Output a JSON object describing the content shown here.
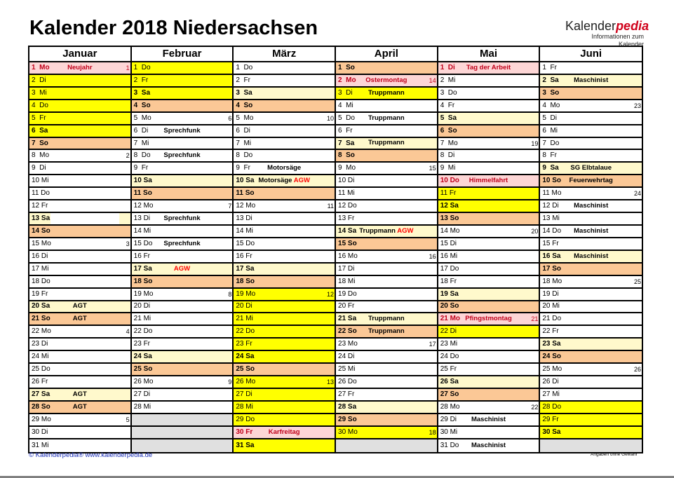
{
  "title": "Kalender 2018 Niedersachsen",
  "logo": {
    "main": "Kalender",
    "accent": "pedia",
    "sub": "Informationen zum Kalender"
  },
  "colors": {
    "saturday": "#fff9cc",
    "sunday": "#fbc896",
    "holiday": "#fdd6d6",
    "holiday_text": "#c0001a",
    "vacation": "#ffff00",
    "empty": "#e0e0e0",
    "link": "#1b2fb8"
  },
  "months": [
    {
      "name": "Januar",
      "days": [
        {
          "d": "1  Mo",
          "t": "hol",
          "ev": "Neujahr",
          "wk": "1"
        },
        {
          "d": "2  Di",
          "t": "yel"
        },
        {
          "d": "3  Mi",
          "t": "yel"
        },
        {
          "d": "4  Do",
          "t": "yel"
        },
        {
          "d": "5  Fr",
          "t": "yel"
        },
        {
          "d": "6  Sa",
          "t": "yel",
          "b": true
        },
        {
          "d": "7  So",
          "t": "sun",
          "b": true
        },
        {
          "d": "8  Mo",
          "wk": "2"
        },
        {
          "d": "9  Di"
        },
        {
          "d": "10 Mi"
        },
        {
          "d": "11 Do"
        },
        {
          "d": "12 Fr"
        },
        {
          "d": "13 Sa",
          "t": "part",
          "b": true
        },
        {
          "d": "14 So",
          "t": "sun",
          "b": true
        },
        {
          "d": "15 Mo",
          "wk": "3"
        },
        {
          "d": "16 Di"
        },
        {
          "d": "17 Mi"
        },
        {
          "d": "18 Do"
        },
        {
          "d": "19 Fr"
        },
        {
          "d": "20 Sa",
          "t": "sat",
          "b": true,
          "ev": "AGT"
        },
        {
          "d": "21 So",
          "t": "sun",
          "b": true,
          "ev": "AGT"
        },
        {
          "d": "22 Mo",
          "wk": "4"
        },
        {
          "d": "23 Di"
        },
        {
          "d": "24 Mi"
        },
        {
          "d": "25 Do"
        },
        {
          "d": "26 Fr"
        },
        {
          "d": "27 Sa",
          "t": "sat",
          "b": true,
          "ev": "AGT"
        },
        {
          "d": "28 So",
          "t": "sun",
          "b": true,
          "ev": "AGT"
        },
        {
          "d": "29 Mo",
          "wk": "5"
        },
        {
          "d": "30 Di"
        },
        {
          "d": "31 Mi"
        }
      ]
    },
    {
      "name": "Februar",
      "days": [
        {
          "d": "1  Do",
          "t": "yel"
        },
        {
          "d": "2  Fr",
          "t": "yel"
        },
        {
          "d": "3  Sa",
          "t": "yel",
          "b": true
        },
        {
          "d": "4  So",
          "t": "sun",
          "b": true
        },
        {
          "d": "5  Mo",
          "wk": "6"
        },
        {
          "d": "6  Di",
          "ev": "Sprechfunk"
        },
        {
          "d": "7  Mi"
        },
        {
          "d": "8  Do",
          "ev": "Sprechfunk"
        },
        {
          "d": "9  Fr"
        },
        {
          "d": "10 Sa",
          "t": "sat",
          "b": true
        },
        {
          "d": "11 So",
          "t": "sun",
          "b": true
        },
        {
          "d": "12 Mo",
          "wk": "7"
        },
        {
          "d": "13 Di",
          "ev": "Sprechfunk"
        },
        {
          "d": "14 Mi"
        },
        {
          "d": "15 Do",
          "ev": "Sprechfunk"
        },
        {
          "d": "16 Fr"
        },
        {
          "d": "17 Sa",
          "t": "sat",
          "b": true,
          "ev": "AGW",
          "evred": true
        },
        {
          "d": "18 So",
          "t": "sun",
          "b": true
        },
        {
          "d": "19 Mo",
          "wk": "8"
        },
        {
          "d": "20 Di"
        },
        {
          "d": "21 Mi"
        },
        {
          "d": "22 Do"
        },
        {
          "d": "23 Fr"
        },
        {
          "d": "24 Sa",
          "t": "sat",
          "b": true
        },
        {
          "d": "25 So",
          "t": "sun",
          "b": true
        },
        {
          "d": "26 Mo",
          "wk": "9"
        },
        {
          "d": "27 Di"
        },
        {
          "d": "28 Mi"
        },
        {
          "d": "",
          "t": "gray"
        },
        {
          "d": "",
          "t": "gray"
        },
        {
          "d": "",
          "t": "gray"
        }
      ]
    },
    {
      "name": "März",
      "days": [
        {
          "d": "1  Do"
        },
        {
          "d": "2  Fr"
        },
        {
          "d": "3  Sa",
          "t": "sat",
          "b": true
        },
        {
          "d": "4  So",
          "t": "sun",
          "b": true
        },
        {
          "d": "5  Mo",
          "wk": "10"
        },
        {
          "d": "6  Di"
        },
        {
          "d": "7  Mi"
        },
        {
          "d": "8  Do"
        },
        {
          "d": "9  Fr",
          "ev": "Motorsäge"
        },
        {
          "d": "10 Sa",
          "t": "sat",
          "b": true,
          "ev": "Motorsäge",
          "ev2": "AGW"
        },
        {
          "d": "11 So",
          "t": "sun",
          "b": true
        },
        {
          "d": "12 Mo",
          "wk": "11"
        },
        {
          "d": "13 Di"
        },
        {
          "d": "14 Mi"
        },
        {
          "d": "15 Do"
        },
        {
          "d": "16 Fr"
        },
        {
          "d": "17 Sa",
          "t": "sat",
          "b": true
        },
        {
          "d": "18 So",
          "t": "sun",
          "b": true
        },
        {
          "d": "19 Mo",
          "t": "yel",
          "wk": "12"
        },
        {
          "d": "20 Di",
          "t": "yel"
        },
        {
          "d": "21 Mi",
          "t": "yel"
        },
        {
          "d": "22 Do",
          "t": "yel"
        },
        {
          "d": "23 Fr",
          "t": "yel"
        },
        {
          "d": "24 Sa",
          "t": "yel",
          "b": true
        },
        {
          "d": "25 So",
          "t": "sun",
          "b": true
        },
        {
          "d": "26 Mo",
          "t": "yel",
          "wk": "13"
        },
        {
          "d": "27 Di",
          "t": "yel"
        },
        {
          "d": "28 Mi",
          "t": "yel"
        },
        {
          "d": "29 Do",
          "t": "yel"
        },
        {
          "d": "30 Fr",
          "t": "hol",
          "ev": "Karfreitag"
        },
        {
          "d": "31 Sa",
          "t": "yel",
          "b": true
        }
      ]
    },
    {
      "name": "April",
      "days": [
        {
          "d": "1  So",
          "t": "sun",
          "b": true
        },
        {
          "d": "2  Mo",
          "t": "hol",
          "ev": "Ostermontag",
          "wk": "14"
        },
        {
          "d": "3  Di",
          "t": "yel",
          "ev": "Truppmann"
        },
        {
          "d": "4  Mi"
        },
        {
          "d": "5  Do",
          "ev": "Truppmann"
        },
        {
          "d": "6  Fr"
        },
        {
          "d": "7  Sa",
          "t": "sat",
          "b": true,
          "ev": "Truppmann"
        },
        {
          "d": "8  So",
          "t": "sun",
          "b": true
        },
        {
          "d": "9  Mo",
          "wk": "15"
        },
        {
          "d": "10 Di"
        },
        {
          "d": "11 Mi"
        },
        {
          "d": "12 Do"
        },
        {
          "d": "13 Fr"
        },
        {
          "d": "14 Sa",
          "t": "sat",
          "b": true,
          "ev": "Truppmann",
          "ev2": "AGW"
        },
        {
          "d": "15 So",
          "t": "sun",
          "b": true
        },
        {
          "d": "16 Mo",
          "wk": "16"
        },
        {
          "d": "17 Di"
        },
        {
          "d": "18 Mi"
        },
        {
          "d": "19 Do"
        },
        {
          "d": "20 Fr"
        },
        {
          "d": "21 Sa",
          "t": "sat",
          "b": true,
          "ev": "Truppmann"
        },
        {
          "d": "22 So",
          "t": "sun",
          "b": true,
          "ev": "Truppmann"
        },
        {
          "d": "23 Mo",
          "wk": "17"
        },
        {
          "d": "24 Di"
        },
        {
          "d": "25 Mi"
        },
        {
          "d": "26 Do"
        },
        {
          "d": "27 Fr"
        },
        {
          "d": "28 Sa",
          "t": "sat",
          "b": true
        },
        {
          "d": "29 So",
          "t": "sun",
          "b": true
        },
        {
          "d": "30 Mo",
          "t": "yel",
          "wk": "18"
        },
        {
          "d": "",
          "t": "gray"
        }
      ]
    },
    {
      "name": "Mai",
      "days": [
        {
          "d": "1  Di",
          "t": "hol",
          "ev": "Tag der Arbeit"
        },
        {
          "d": "2  Mi"
        },
        {
          "d": "3  Do"
        },
        {
          "d": "4  Fr"
        },
        {
          "d": "5  Sa",
          "t": "sat",
          "b": true
        },
        {
          "d": "6  So",
          "t": "sun",
          "b": true
        },
        {
          "d": "7  Mo",
          "wk": "19"
        },
        {
          "d": "8  Di"
        },
        {
          "d": "9  Mi"
        },
        {
          "d": "10 Do",
          "t": "hol",
          "ev": "Himmelfahrt"
        },
        {
          "d": "11 Fr",
          "t": "yel"
        },
        {
          "d": "12 Sa",
          "t": "yel",
          "b": true
        },
        {
          "d": "13 So",
          "t": "sun",
          "b": true
        },
        {
          "d": "14 Mo",
          "wk": "20"
        },
        {
          "d": "15 Di"
        },
        {
          "d": "16 Mi"
        },
        {
          "d": "17 Do"
        },
        {
          "d": "18 Fr"
        },
        {
          "d": "19 Sa",
          "t": "sat",
          "b": true
        },
        {
          "d": "20 So",
          "t": "sun",
          "b": true
        },
        {
          "d": "21 Mo",
          "t": "hol",
          "ev": "Pfingstmontag",
          "wk": "21"
        },
        {
          "d": "22 Di",
          "t": "yel"
        },
        {
          "d": "23 Mi"
        },
        {
          "d": "24 Do"
        },
        {
          "d": "25 Fr"
        },
        {
          "d": "26 Sa",
          "t": "sat",
          "b": true
        },
        {
          "d": "27 So",
          "t": "sun",
          "b": true
        },
        {
          "d": "28 Mo",
          "wk": "22"
        },
        {
          "d": "29 Di",
          "ev": "Maschinist"
        },
        {
          "d": "30 Mi"
        },
        {
          "d": "31 Do",
          "ev": "Maschinist"
        }
      ]
    },
    {
      "name": "Juni",
      "days": [
        {
          "d": "1  Fr"
        },
        {
          "d": "2  Sa",
          "t": "sat",
          "b": true,
          "ev": "Maschinist"
        },
        {
          "d": "3  So",
          "t": "sun",
          "b": true
        },
        {
          "d": "4  Mo",
          "wk": "23"
        },
        {
          "d": "5  Di"
        },
        {
          "d": "6  Mi"
        },
        {
          "d": "7  Do"
        },
        {
          "d": "8  Fr"
        },
        {
          "d": "9  Sa",
          "t": "sat",
          "b": true,
          "ev": "SG Elbtalaue"
        },
        {
          "d": "10 So",
          "t": "sun",
          "b": true,
          "ev": "Feuerwehrtag"
        },
        {
          "d": "11 Mo",
          "wk": "24"
        },
        {
          "d": "12 Di",
          "ev": "Maschinist"
        },
        {
          "d": "13 Mi"
        },
        {
          "d": "14 Do",
          "ev": "Maschinist"
        },
        {
          "d": "15 Fr"
        },
        {
          "d": "16 Sa",
          "t": "sat",
          "b": true,
          "ev": "Maschinist"
        },
        {
          "d": "17 So",
          "t": "sun",
          "b": true
        },
        {
          "d": "18 Mo",
          "wk": "25"
        },
        {
          "d": "19 Di"
        },
        {
          "d": "20 Mi"
        },
        {
          "d": "21 Do"
        },
        {
          "d": "22 Fr"
        },
        {
          "d": "23 Sa",
          "t": "sat",
          "b": true
        },
        {
          "d": "24 So",
          "t": "sun",
          "b": true
        },
        {
          "d": "25 Mo",
          "wk": "26"
        },
        {
          "d": "26 Di"
        },
        {
          "d": "27 Mi"
        },
        {
          "d": "28 Do",
          "t": "yel"
        },
        {
          "d": "29 Fr",
          "t": "yel"
        },
        {
          "d": "30 Sa",
          "t": "yel",
          "b": true
        },
        {
          "d": "",
          "t": "gray"
        }
      ]
    }
  ],
  "footer": {
    "copyright": "© Kalenderpedia®   www.kalenderpedia.de",
    "disclaimer": "Angaben ohne Gewähr"
  }
}
